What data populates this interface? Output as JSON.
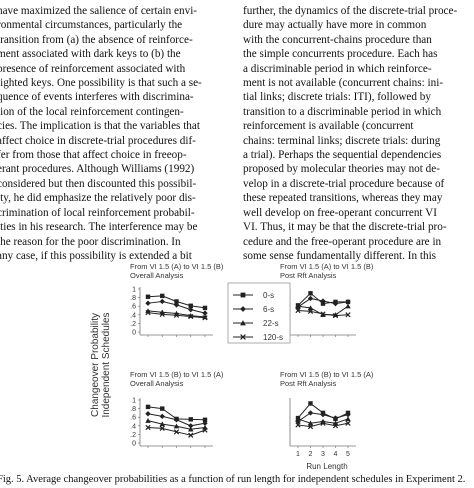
{
  "left_column": [
    "have maximized the salience of certain envi-",
    "ronmental circumstances, particularly the",
    "transition from (a) the absence of reinforce-",
    "ment associated with dark keys to (b) the",
    "presence of reinforcement associated with",
    "lighted keys. One possibility is that such a se-",
    "quence of events interferes with discrimina-",
    "tion of the local reinforcement contingen-",
    "cies. The implication is that the variables that",
    "affect choice in discrete-trial procedures dif-",
    "fer from those that affect choice in freeop-",
    "erant procedures. Although Williams (1992)",
    "considered but then discounted this possibil-",
    "ity, he did emphasize the relatively poor dis-",
    "crimination of local reinforcement probabil-",
    "ities in his research. The interference may be",
    "the reason for the poor discrimination. In",
    "any case, if this possibility is extended a bit"
  ],
  "right_column": [
    "further, the dynamics of the discrete-trial proce-",
    "dure may actually have more in common",
    "with the concurrent-chains procedure than",
    "the simple concurrents procedure. Each has",
    "a discriminable period in which reinforce-",
    "ment is not available (concurrent chains: ini-",
    "tial links; discrete trials: ITI), followed by",
    "transition to a discriminable period in which",
    "reinforcement is available (concurrent",
    "chains: terminal links; discrete trials: during",
    "a trial). Perhaps the sequential dependencies",
    "proposed by molecular theories may not de-",
    "velop in a discrete-trial procedure because of",
    "these repeated transitions, whereas they may",
    "well develop on free-operant concurrent VI",
    "VI. Thus, it may be that the discrete-trial pro-",
    "cedure and the free-operant procedure are in",
    "some sense fundamentally different. In this"
  ],
  "figure": {
    "y_axis_label_line1": "Changeover Probability",
    "y_axis_label_line2": "Independent Schedules",
    "x_axis_label": "Run Length",
    "legend": [
      "0-s",
      "6-s",
      "22-s",
      "120-s"
    ],
    "caption": "Fig. 5.   Average changeover probabilities as a function of run length for independent schedules in Experiment 2."
  },
  "chart_data": [
    {
      "type": "line",
      "title": "From VI 1.5 (A) to VI 1.5 (B)",
      "subtitle": "Overall Analysis",
      "x": [
        1,
        2,
        3,
        4,
        5
      ],
      "ylim": [
        0,
        1
      ],
      "yticks": [
        "0",
        ".2",
        ".4",
        ".6",
        ".8",
        "1"
      ],
      "series": [
        {
          "name": "0-s",
          "values": [
            0.82,
            0.84,
            0.71,
            0.61,
            0.56
          ]
        },
        {
          "name": "6-s",
          "values": [
            0.67,
            0.71,
            0.63,
            0.52,
            0.44
          ]
        },
        {
          "name": "22-s",
          "values": [
            0.49,
            0.46,
            0.43,
            0.38,
            0.35
          ]
        },
        {
          "name": "120-s",
          "values": [
            0.45,
            0.41,
            0.39,
            0.36,
            0.33
          ]
        }
      ]
    },
    {
      "type": "line",
      "title": "From VI 1.5 (A) to VI 1.5 (B)",
      "subtitle": "Post Rft Analysis",
      "x": [
        1,
        2,
        3,
        4,
        5
      ],
      "ylim": [
        0,
        1
      ],
      "series": [
        {
          "name": "0-s",
          "values": [
            0.62,
            0.9,
            0.66,
            0.7,
            0.7
          ]
        },
        {
          "name": "6-s",
          "values": [
            0.58,
            0.78,
            0.72,
            0.66,
            0.7
          ]
        },
        {
          "name": "22-s",
          "values": [
            0.6,
            0.56,
            0.4,
            0.4,
            0.6
          ]
        },
        {
          "name": "120-s",
          "values": [
            0.5,
            0.48,
            0.42,
            0.38,
            0.4
          ]
        }
      ]
    },
    {
      "type": "line",
      "title": "From VI 1.5 (B) to VI 1.5 (A)",
      "subtitle": "Overall Analysis",
      "x": [
        1,
        2,
        3,
        4,
        5
      ],
      "ylim": [
        0,
        1
      ],
      "yticks": [
        "0",
        ".2",
        ".4",
        ".6",
        ".8",
        "1"
      ],
      "series": [
        {
          "name": "0-s",
          "values": [
            0.84,
            0.8,
            0.56,
            0.55,
            0.54
          ]
        },
        {
          "name": "6-s",
          "values": [
            0.68,
            0.62,
            0.54,
            0.4,
            0.46
          ]
        },
        {
          "name": "22-s",
          "values": [
            0.52,
            0.44,
            0.39,
            0.32,
            0.36
          ]
        },
        {
          "name": "120-s",
          "values": [
            0.36,
            0.34,
            0.26,
            0.18,
            0.3
          ]
        }
      ]
    },
    {
      "type": "line",
      "title": "From VI 1.5 (B) to VI 1.5 (A)",
      "subtitle": "Post Rft Analysis",
      "x": [
        1,
        2,
        3,
        4,
        5
      ],
      "xticks": [
        "1",
        "2",
        "3",
        "4",
        "5"
      ],
      "ylim": [
        0,
        1
      ],
      "series": [
        {
          "name": "0-s",
          "values": [
            0.58,
            0.92,
            0.7,
            0.56,
            0.7
          ]
        },
        {
          "name": "6-s",
          "values": [
            0.5,
            0.7,
            0.66,
            0.58,
            0.66
          ]
        },
        {
          "name": "22-s",
          "values": [
            0.56,
            0.46,
            0.5,
            0.46,
            0.56
          ]
        },
        {
          "name": "120-s",
          "values": [
            0.42,
            0.38,
            0.46,
            0.4,
            0.46
          ]
        }
      ]
    }
  ]
}
